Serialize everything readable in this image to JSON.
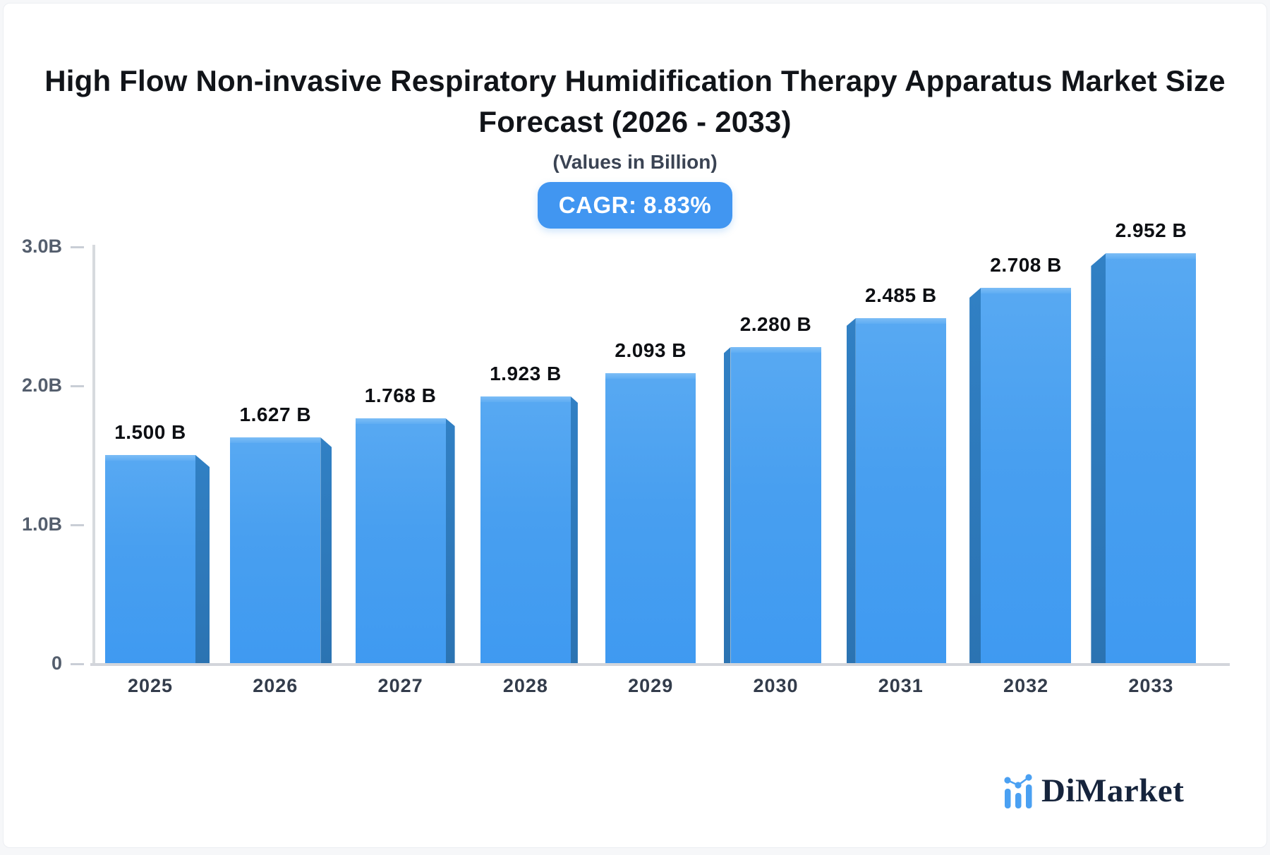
{
  "page": {
    "background": "#f6f7f9",
    "card_background": "#ffffff"
  },
  "header": {
    "title_line1": "High Flow Non-invasive Respiratory Humidification Therapy Apparatus Market Size",
    "title_line2": "Forecast (2026 - 2033)",
    "subtitle": "(Values in Billion)",
    "cagr_badge": "CAGR: 8.83%"
  },
  "chart_data": {
    "type": "bar",
    "title": "High Flow Non-invasive Respiratory Humidification Therapy Apparatus Market Size Forecast (2026 - 2033)",
    "subtitle": "(Values in Billion)",
    "cagr_percent": 8.83,
    "unit": "Billion",
    "categories": [
      "2025",
      "2026",
      "2027",
      "2028",
      "2029",
      "2030",
      "2031",
      "2032",
      "2033"
    ],
    "values": [
      1.5,
      1.627,
      1.768,
      1.923,
      2.093,
      2.28,
      2.485,
      2.708,
      2.952
    ],
    "value_labels": [
      "1.500 B",
      "1.627 B",
      "1.768 B",
      "1.923 B",
      "2.093 B",
      "2.280 B",
      "2.485 B",
      "2.708 B",
      "2.952 B"
    ],
    "ylim": [
      0,
      3.0
    ],
    "yticks": [
      {
        "label": "0",
        "value": 0
      },
      {
        "label": "1.0B",
        "value": 1.0
      },
      {
        "label": "2.0B",
        "value": 2.0
      },
      {
        "label": "3.0B",
        "value": 3.0
      }
    ],
    "grid": false,
    "legend": false,
    "style_3d": true,
    "bar_color": "#459ef1",
    "bar_side_color": "#2d78ba",
    "bar_top_color": "#6db4f5",
    "axis_color": "#d2d5db"
  },
  "branding": {
    "logo_text": "DiMarket",
    "logo_text_color": "#16243c",
    "logo_icon_color": "#4aa0f2"
  }
}
